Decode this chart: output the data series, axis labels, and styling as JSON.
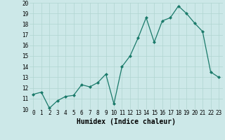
{
  "x": [
    0,
    1,
    2,
    3,
    4,
    5,
    6,
    7,
    8,
    9,
    10,
    11,
    12,
    13,
    14,
    15,
    16,
    17,
    18,
    19,
    20,
    21,
    22,
    23
  ],
  "y": [
    11.4,
    11.6,
    10.1,
    10.8,
    11.2,
    11.3,
    12.3,
    12.1,
    12.5,
    13.3,
    10.5,
    14.0,
    15.0,
    16.7,
    18.6,
    16.3,
    18.3,
    18.6,
    19.7,
    19.0,
    18.1,
    17.3,
    13.5,
    13.0
  ],
  "xlabel": "Humidex (Indice chaleur)",
  "xlim": [
    -0.5,
    23.5
  ],
  "ylim": [
    10,
    20
  ],
  "yticks": [
    10,
    11,
    12,
    13,
    14,
    15,
    16,
    17,
    18,
    19,
    20
  ],
  "xticks": [
    0,
    1,
    2,
    3,
    4,
    5,
    6,
    7,
    8,
    9,
    10,
    11,
    12,
    13,
    14,
    15,
    16,
    17,
    18,
    19,
    20,
    21,
    22,
    23
  ],
  "line_color": "#1a7a6a",
  "marker_color": "#1a7a6a",
  "bg_color": "#cce8e8",
  "grid_color": "#b0d4d0",
  "tick_label_fontsize": 5.5,
  "xlabel_fontsize": 7,
  "marker_size": 2.0,
  "linewidth": 0.9
}
